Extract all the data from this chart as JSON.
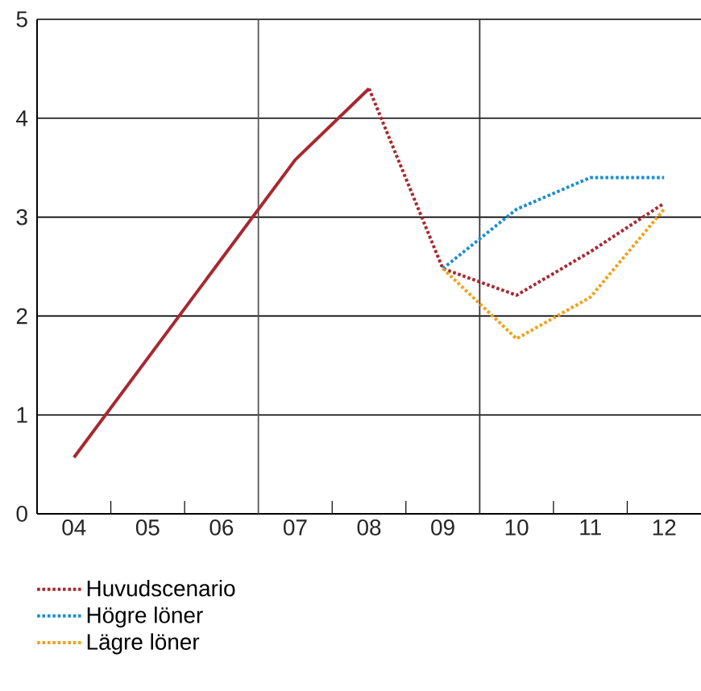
{
  "chart_data": {
    "type": "line",
    "xlim": [
      3.5,
      12.5
    ],
    "ylim": [
      0,
      5
    ],
    "xticks": [
      {
        "value": 4,
        "label": "04"
      },
      {
        "value": 5,
        "label": "05"
      },
      {
        "value": 6,
        "label": "06"
      },
      {
        "value": 7,
        "label": "07"
      },
      {
        "value": 8,
        "label": "08"
      },
      {
        "value": 9,
        "label": "09"
      },
      {
        "value": 10,
        "label": "10"
      },
      {
        "value": 11,
        "label": "11"
      },
      {
        "value": 12,
        "label": "12"
      },
      {
        "value": 4.5,
        "label": null
      },
      {
        "value": 5.5,
        "label": null
      },
      {
        "value": 7.5,
        "label": null
      },
      {
        "value": 8.5,
        "label": null
      },
      {
        "value": 10.5,
        "label": null
      },
      {
        "value": 11.5,
        "label": null
      }
    ],
    "yticks": [
      0,
      1,
      2,
      3,
      4,
      5
    ],
    "grid": "y",
    "legend": "bottom",
    "marker": "none",
    "ref_lines": [
      {
        "axis": "x",
        "value": 6.5,
        "color": "#555555"
      },
      {
        "axis": "x",
        "value": 9.5,
        "color": "#333333"
      }
    ],
    "series": [
      {
        "color": "#a8282f",
        "line_style": "solid",
        "x": [
          4,
          7,
          8
        ],
        "values": [
          0.57,
          3.58,
          4.3
        ]
      },
      {
        "name": "Huvudscenario",
        "color": "#a8282f",
        "line_style": "dotted",
        "x": [
          8,
          9,
          10,
          11,
          12
        ],
        "values": [
          4.3,
          2.48,
          2.21,
          2.65,
          3.14
        ]
      },
      {
        "name": "Högre löner",
        "color": "#1b8fd2",
        "line_style": "dotted",
        "x": [
          9,
          10,
          11,
          12
        ],
        "values": [
          2.48,
          3.08,
          3.4,
          3.4
        ]
      },
      {
        "name": "Lägre löner",
        "color": "#f0a21e",
        "line_style": "dotted",
        "x": [
          9,
          10,
          11,
          12
        ],
        "values": [
          2.48,
          1.77,
          2.19,
          3.08
        ]
      }
    ]
  }
}
